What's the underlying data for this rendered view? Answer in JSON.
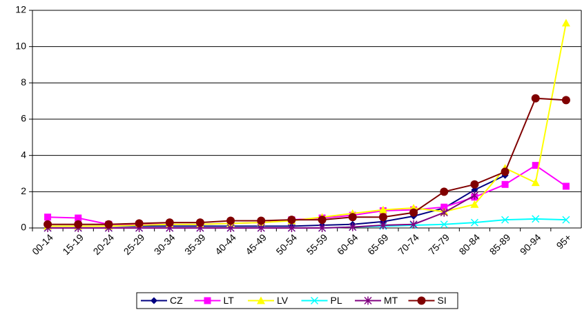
{
  "chart_data": {
    "type": "line",
    "categories": [
      "00-14",
      "15-19",
      "20-24",
      "25-29",
      "30-34",
      "35-39",
      "40-44",
      "45-49",
      "50-54",
      "55-59",
      "60-64",
      "65-69",
      "70-74",
      "75-79",
      "80-84",
      "85-89",
      "90-94",
      "95+"
    ],
    "series": [
      {
        "name": "CZ",
        "color": "#000080",
        "marker": "diamond",
        "values": [
          0.1,
          0.1,
          0.1,
          0.1,
          0.1,
          0.1,
          0.1,
          0.1,
          0.1,
          0.15,
          0.2,
          0.35,
          0.65,
          1.1,
          2.1,
          2.9,
          null,
          null
        ]
      },
      {
        "name": "LT",
        "color": "#FF00FF",
        "marker": "square",
        "values": [
          0.6,
          0.55,
          0.2,
          0.2,
          0.2,
          0.2,
          0.25,
          0.3,
          0.45,
          0.55,
          0.7,
          0.95,
          1.0,
          1.15,
          1.7,
          2.4,
          3.45,
          2.3
        ]
      },
      {
        "name": "LV",
        "color": "#FFFF00",
        "marker": "triangle",
        "values": [
          0.1,
          0.1,
          0.1,
          0.15,
          0.2,
          0.2,
          0.25,
          0.3,
          0.4,
          0.6,
          0.8,
          1.0,
          1.1,
          0.9,
          1.3,
          3.3,
          2.5,
          11.3
        ]
      },
      {
        "name": "PL",
        "color": "#00FFFF",
        "marker": "x",
        "values": [
          0,
          0,
          0,
          0,
          0,
          0,
          0,
          0,
          0,
          0,
          0.05,
          0.1,
          0.15,
          0.2,
          0.3,
          0.45,
          0.5,
          0.45
        ]
      },
      {
        "name": "MT",
        "color": "#800080",
        "marker": "star",
        "values": [
          0,
          0,
          0,
          0,
          0,
          0,
          0,
          0,
          0,
          0,
          0.05,
          0.15,
          0.2,
          0.85,
          1.8,
          null,
          null,
          null
        ]
      },
      {
        "name": "SI",
        "color": "#800000",
        "marker": "circle",
        "values": [
          0.2,
          0.2,
          0.2,
          0.25,
          0.3,
          0.3,
          0.4,
          0.4,
          0.45,
          0.45,
          0.6,
          0.6,
          0.85,
          2.0,
          2.4,
          3.1,
          7.15,
          7.05
        ]
      }
    ],
    "ylim": [
      0,
      12
    ],
    "yticks": [
      0,
      2,
      4,
      6,
      8,
      10,
      12
    ],
    "grid": true,
    "legend": "bottom"
  }
}
